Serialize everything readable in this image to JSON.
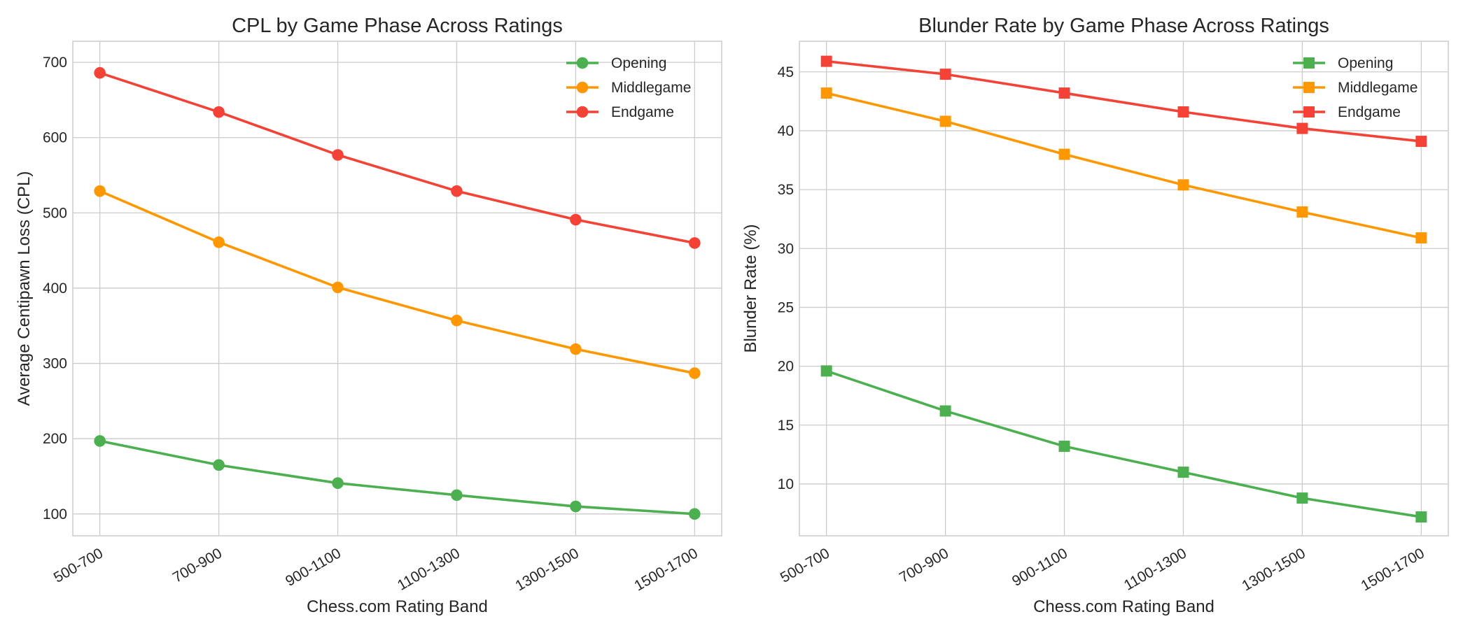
{
  "chart_data": [
    {
      "type": "line",
      "title": "CPL by Game Phase Across Ratings",
      "xlabel": "Chess.com Rating Band",
      "ylabel": "Average Centipawn Loss (CPL)",
      "categories": [
        "500-700",
        "700-900",
        "900-1100",
        "1100-1300",
        "1300-1500",
        "1500-1700"
      ],
      "ylim": [
        71,
        728
      ],
      "yticks": [
        100,
        200,
        300,
        400,
        500,
        600,
        700
      ],
      "grid": true,
      "legend_position": "top-right",
      "marker": "circle",
      "series": [
        {
          "name": "Opening",
          "color": "#4caf50",
          "values": [
            197,
            165,
            141,
            125,
            110,
            100
          ]
        },
        {
          "name": "Middlegame",
          "color": "#ff9800",
          "values": [
            529,
            461,
            401,
            357,
            319,
            287
          ]
        },
        {
          "name": "Endgame",
          "color": "#f44336",
          "values": [
            686,
            634,
            577,
            529,
            491,
            460
          ]
        }
      ]
    },
    {
      "type": "line",
      "title": "Blunder Rate by Game Phase Across Ratings",
      "xlabel": "Chess.com Rating Band",
      "ylabel": "Blunder Rate (%)",
      "categories": [
        "500-700",
        "700-900",
        "900-1100",
        "1100-1300",
        "1300-1500",
        "1500-1700"
      ],
      "ylim": [
        5.6,
        47.6
      ],
      "yticks": [
        10,
        15,
        20,
        25,
        30,
        35,
        40,
        45
      ],
      "grid": true,
      "legend_position": "top-right",
      "marker": "square",
      "series": [
        {
          "name": "Opening",
          "color": "#4caf50",
          "values": [
            19.6,
            16.2,
            13.2,
            11.0,
            8.8,
            7.2
          ]
        },
        {
          "name": "Middlegame",
          "color": "#ff9800",
          "values": [
            43.2,
            40.8,
            38.0,
            35.4,
            33.1,
            30.9
          ]
        },
        {
          "name": "Endgame",
          "color": "#f44336",
          "values": [
            45.9,
            44.8,
            43.2,
            41.6,
            40.2,
            39.1
          ]
        }
      ]
    }
  ]
}
